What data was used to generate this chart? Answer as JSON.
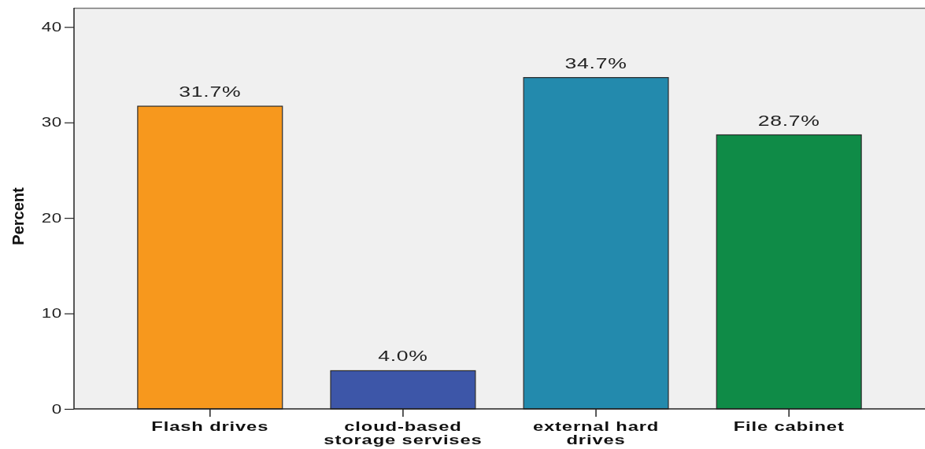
{
  "chart_data": {
    "type": "bar",
    "ylabel": "Percent",
    "categories": [
      "Flash drives",
      "cloud-based storage servises",
      "external hard drives",
      "File cabinet"
    ],
    "values": [
      31.7,
      4.0,
      34.7,
      28.7
    ],
    "colors": [
      "#f7981d",
      "#3d56a8",
      "#238aad",
      "#0f8b47"
    ],
    "value_labels": [
      "31.7%",
      "4.0%",
      "34.7%",
      "28.7%"
    ],
    "ylim": [
      0,
      42
    ],
    "yticks": [
      0,
      10,
      20,
      30,
      40
    ],
    "grid": false
  }
}
